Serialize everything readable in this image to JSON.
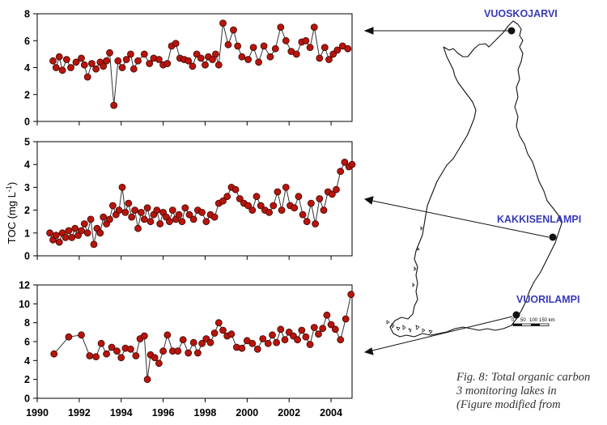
{
  "chart_data": {
    "type": "line",
    "ylabel": "TOC (mg L⁻¹)",
    "ylabel_prefix": "TOC  (mg L",
    "ylabel_exponent": "-1",
    "ylabel_suffix": ")",
    "x_tick_labels": [
      "1990",
      "1992",
      "1994",
      "1996",
      "1998",
      "2000",
      "2002",
      "2004"
    ],
    "xlim": [
      1990,
      2005
    ],
    "marker_color": "#b8140c",
    "panels": [
      {
        "lake": "VUOSKOJARVI",
        "ylim": [
          0,
          8
        ],
        "y_ticks": [
          0,
          2,
          4,
          6,
          8
        ],
        "series": [
          {
            "x": [
              1990.75,
              1990.9,
              1991.05,
              1991.2,
              1991.4,
              1991.6,
              1991.85,
              1992.1,
              1992.25,
              1992.4,
              1992.6,
              1992.8,
              1993.0,
              1993.15,
              1993.3,
              1993.45,
              1993.65,
              1993.85,
              1994.05,
              1994.25,
              1994.45,
              1994.6,
              1994.8,
              1995.1,
              1995.35,
              1995.55,
              1995.8,
              1996.0,
              1996.2,
              1996.4,
              1996.6,
              1996.8,
              1997.0,
              1997.2,
              1997.4,
              1997.6,
              1997.8,
              1998.0,
              1998.15,
              1998.35,
              1998.5,
              1998.65,
              1998.85,
              1999.1,
              1999.35,
              1999.55,
              1999.75,
              2000.05,
              2000.3,
              2000.55,
              2000.8,
              2001.1,
              2001.35,
              2001.6,
              2001.85,
              2002.1,
              2002.35,
              2002.6,
              2002.8,
              2003.0,
              2003.2,
              2003.45,
              2003.7,
              2003.9,
              2004.1,
              2004.3,
              2004.55,
              2004.8
            ],
            "y": [
              4.5,
              4.0,
              4.8,
              3.8,
              4.6,
              4.0,
              4.4,
              4.7,
              4.2,
              3.3,
              4.3,
              3.9,
              4.4,
              4.1,
              4.5,
              5.1,
              1.2,
              4.5,
              4.0,
              4.6,
              5.0,
              3.9,
              4.5,
              5.0,
              4.3,
              4.7,
              4.6,
              4.2,
              4.3,
              5.6,
              5.8,
              4.7,
              4.6,
              4.5,
              4.1,
              5.0,
              4.7,
              4.2,
              4.8,
              4.6,
              5.0,
              4.2,
              7.3,
              5.7,
              6.8,
              5.6,
              4.8,
              4.6,
              5.5,
              4.4,
              5.6,
              4.8,
              5.4,
              7.0,
              6.0,
              5.2,
              5.0,
              5.9,
              6.0,
              5.5,
              7.0,
              4.7,
              5.5,
              4.6,
              5.0,
              5.3,
              5.6,
              5.4
            ]
          }
        ]
      },
      {
        "lake": "KAKKISENLAMPI",
        "ylim": [
          0,
          5
        ],
        "y_ticks": [
          0,
          1,
          2,
          3,
          4,
          5
        ],
        "series": [
          {
            "x": [
              1990.6,
              1990.75,
              1990.9,
              1991.05,
              1991.2,
              1991.35,
              1991.5,
              1991.65,
              1991.8,
              1991.95,
              1992.1,
              1992.25,
              1992.4,
              1992.55,
              1992.7,
              1992.85,
              1993.0,
              1993.15,
              1993.3,
              1993.45,
              1993.6,
              1993.75,
              1993.9,
              1994.05,
              1994.2,
              1994.35,
              1994.5,
              1994.65,
              1994.8,
              1994.95,
              1995.1,
              1995.25,
              1995.4,
              1995.55,
              1995.7,
              1995.85,
              1996.0,
              1996.15,
              1996.3,
              1996.45,
              1996.6,
              1996.75,
              1996.9,
              1997.05,
              1997.25,
              1997.45,
              1997.65,
              1997.85,
              1998.05,
              1998.25,
              1998.45,
              1998.65,
              1998.85,
              1999.05,
              1999.25,
              1999.45,
              1999.65,
              1999.85,
              2000.05,
              2000.25,
              2000.45,
              2000.65,
              2000.85,
              2001.05,
              2001.25,
              2001.45,
              2001.65,
              2001.85,
              2002.05,
              2002.25,
              2002.45,
              2002.65,
              2002.85,
              2003.05,
              2003.25,
              2003.45,
              2003.65,
              2003.85,
              2004.05,
              2004.25,
              2004.45,
              2004.65,
              2004.85,
              2005.0
            ],
            "y": [
              1.0,
              0.7,
              0.9,
              0.6,
              1.0,
              0.8,
              1.1,
              0.8,
              1.2,
              0.9,
              1.1,
              1.4,
              1.0,
              1.6,
              0.5,
              1.2,
              1.0,
              1.7,
              1.4,
              1.6,
              2.2,
              1.8,
              2.0,
              3.0,
              1.9,
              2.3,
              1.7,
              2.0,
              1.2,
              1.9,
              1.6,
              2.1,
              1.5,
              1.8,
              2.0,
              1.4,
              1.9,
              1.7,
              1.5,
              2.0,
              1.6,
              1.8,
              1.5,
              2.1,
              1.8,
              1.6,
              2.0,
              1.9,
              1.5,
              1.8,
              1.7,
              2.3,
              2.4,
              2.6,
              3.0,
              2.9,
              2.5,
              2.3,
              2.2,
              2.0,
              2.6,
              2.2,
              2.0,
              1.9,
              2.2,
              2.8,
              2.0,
              3.0,
              2.2,
              2.1,
              2.6,
              1.8,
              1.5,
              2.3,
              1.4,
              2.5,
              2.0,
              2.8,
              2.7,
              2.9,
              3.7,
              4.1,
              3.9,
              4.0
            ]
          }
        ]
      },
      {
        "lake": "VUORILAMPI",
        "ylim": [
          0,
          12
        ],
        "y_ticks": [
          0,
          2,
          4,
          6,
          8,
          10,
          12
        ],
        "series": [
          {
            "x": [
              1990.8,
              1991.5,
              1992.1,
              1992.5,
              1992.8,
              1993.05,
              1993.3,
              1993.55,
              1993.8,
              1994.0,
              1994.2,
              1994.45,
              1994.7,
              1994.9,
              1995.1,
              1995.25,
              1995.4,
              1995.6,
              1995.8,
              1996.0,
              1996.2,
              1996.45,
              1996.7,
              1996.95,
              1997.2,
              1997.45,
              1997.65,
              1997.85,
              1998.05,
              1998.25,
              1998.45,
              1998.65,
              1998.85,
              1999.05,
              1999.25,
              1999.5,
              1999.75,
              2000.0,
              2000.25,
              2000.5,
              2000.75,
              2001.0,
              2001.2,
              2001.4,
              2001.6,
              2001.8,
              2002.0,
              2002.2,
              2002.4,
              2002.6,
              2002.8,
              2003.0,
              2003.2,
              2003.4,
              2003.6,
              2003.8,
              2004.0,
              2004.2,
              2004.45,
              2004.7,
              2004.95
            ],
            "y": [
              4.7,
              6.5,
              6.7,
              4.5,
              4.4,
              5.8,
              4.7,
              5.4,
              5.0,
              4.3,
              5.3,
              5.2,
              4.5,
              6.3,
              6.6,
              2.0,
              4.6,
              4.3,
              3.7,
              5.0,
              6.7,
              5.0,
              5.0,
              6.2,
              4.8,
              5.9,
              4.8,
              5.8,
              6.3,
              5.9,
              6.9,
              8.0,
              7.2,
              6.6,
              6.8,
              5.4,
              5.3,
              6.1,
              5.8,
              5.2,
              6.3,
              5.8,
              6.7,
              5.9,
              7.3,
              6.2,
              7.0,
              6.6,
              6.2,
              7.2,
              6.5,
              5.7,
              7.5,
              6.8,
              7.4,
              8.8,
              7.8,
              7.3,
              6.2,
              8.4,
              11.0
            ]
          }
        ]
      }
    ]
  },
  "map": {
    "lakes": [
      {
        "name": "VUOSKOJARVI"
      },
      {
        "name": "KAKKISENLAMPI"
      },
      {
        "name": "VUORILAMPI"
      }
    ],
    "scale_labels": [
      "0",
      "50",
      "100",
      "150 km"
    ]
  },
  "caption": {
    "lines": [
      "Fig. 8: Total organic carbon",
      "3 monitoring lakes in",
      "(Figure modified from"
    ]
  }
}
